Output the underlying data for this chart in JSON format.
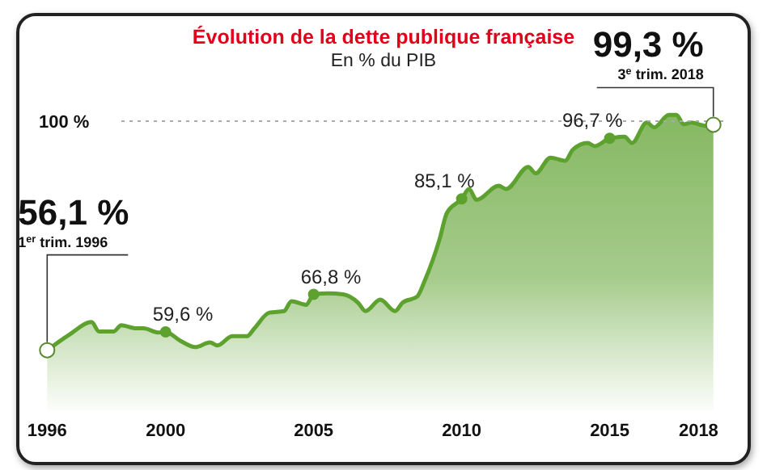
{
  "chart_data": {
    "type": "area",
    "title": "Évolution de la dette publique française",
    "subtitle": "En % du PIB",
    "x": [
      1996.0,
      1996.75,
      1997.5,
      1997.75,
      1998.25,
      1998.5,
      1999.0,
      1999.25,
      1999.75,
      2000.0,
      2000.5,
      2001.0,
      2001.5,
      2001.75,
      2002.25,
      2002.75,
      2003.0,
      2003.5,
      2004.0,
      2004.25,
      2004.75,
      2005.0,
      2005.5,
      2006.0,
      2006.5,
      2006.75,
      2007.25,
      2007.75,
      2008.0,
      2008.5,
      2008.75,
      2009.25,
      2009.5,
      2010.0,
      2010.25,
      2010.5,
      2011.25,
      2011.5,
      2012.25,
      2012.5,
      2013.0,
      2013.5,
      2013.75,
      2014.25,
      2014.5,
      2015.0,
      2015.5,
      2015.75,
      2016.25,
      2016.5,
      2017.0,
      2017.25,
      2017.5,
      2017.75,
      2018.25,
      2018.5
    ],
    "series": [
      {
        "color": "#5da12e",
        "values": [
          56.1,
          59.1,
          61.5,
          59.7,
          59.7,
          60.9,
          60.3,
          60.3,
          59.5,
          59.6,
          57.9,
          56.7,
          57.6,
          57.0,
          58.8,
          58.8,
          60.3,
          63.3,
          63.6,
          65.5,
          64.8,
          66.8,
          67.0,
          66.8,
          65.2,
          63.6,
          65.8,
          63.6,
          65.2,
          66.4,
          69.4,
          77.3,
          82.4,
          85.1,
          87.0,
          84.9,
          87.6,
          87.0,
          91.2,
          90.0,
          93.0,
          92.4,
          94.5,
          95.8,
          95.2,
          96.7,
          97.0,
          95.8,
          99.7,
          98.8,
          101.2,
          101.2,
          99.4,
          99.7,
          99.1,
          99.3
        ],
        "value_labels": [
          "56,1 %",
          null,
          null,
          null,
          null,
          null,
          null,
          null,
          null,
          "59,6 %",
          null,
          null,
          null,
          null,
          null,
          null,
          null,
          null,
          null,
          null,
          null,
          "66,8 %",
          null,
          null,
          null,
          null,
          null,
          null,
          null,
          null,
          null,
          null,
          null,
          "85,1 %",
          null,
          null,
          null,
          null,
          null,
          null,
          null,
          null,
          null,
          null,
          null,
          "96,7 %",
          null,
          null,
          null,
          null,
          null,
          null,
          null,
          null,
          null,
          "99,3 %"
        ]
      }
    ],
    "xlim": [
      1995.5,
      2019
    ],
    "xticks": [
      1996,
      2000,
      2005,
      2010,
      2015,
      2018
    ],
    "tick_labels": "x",
    "marker": "none",
    "ref_lines": [
      {
        "axis": "y",
        "value": 100,
        "label": "100 %",
        "line_style": "dotted"
      }
    ],
    "annotations": [
      {
        "text": "1$^{er}$ trim. 1996",
        "x": 1996.0,
        "y": 56.1
      },
      {
        "text": "3$^{e}$ trim. 2018",
        "x": 2018.5,
        "y": 99.3
      }
    ]
  }
}
